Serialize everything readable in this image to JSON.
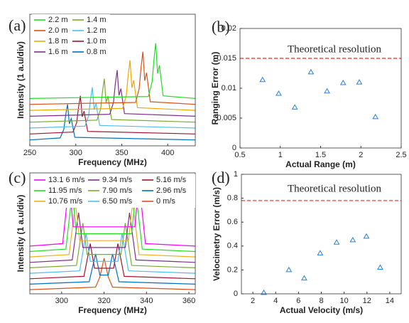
{
  "chart_data": [
    {
      "type": "line",
      "title": "(a)",
      "xlabel": "Frequency (MHz)",
      "ylabel": "Intensity (1 a.u/div)",
      "xlim": [
        250,
        430
      ],
      "xticks": [
        250,
        300,
        350,
        400
      ],
      "ylim": [
        0,
        10
      ],
      "series": [
        {
          "name": "2.2 m",
          "color": "#1fe01f",
          "x": [
            250,
            379,
            383,
            385,
            387,
            389,
            391,
            395,
            430
          ],
          "values": [
            3.6,
            3.75,
            4.86,
            6.54,
            7.8,
            5.49,
            6.12,
            3.8,
            3.6
          ]
        },
        {
          "name": "2.0 m",
          "color": "#d95319",
          "x": [
            250,
            365,
            369,
            371,
            373,
            375,
            377,
            381,
            430
          ],
          "values": [
            3.15,
            3.3,
            4.35,
            5.95,
            7.15,
            4.95,
            5.55,
            3.35,
            3.15
          ]
        },
        {
          "name": "1.8 m",
          "color": "#f0a800",
          "x": [
            250,
            351,
            355,
            357,
            359,
            361,
            363,
            367,
            430
          ],
          "values": [
            2.7,
            2.85,
            3.84,
            5.36,
            6.5,
            4.41,
            4.98,
            2.9,
            2.7
          ]
        },
        {
          "name": "1.6 m",
          "color": "#7e2f8e",
          "x": [
            250,
            337,
            341,
            343,
            345,
            347,
            349,
            353,
            430
          ],
          "values": [
            2.25,
            2.4,
            3.3,
            4.7,
            5.75,
            3.83,
            4.35,
            2.45,
            2.25
          ]
        },
        {
          "name": "1.4 m",
          "color": "#77ac30",
          "x": [
            250,
            323,
            327,
            329,
            331,
            333,
            335,
            339,
            430
          ],
          "values": [
            1.8,
            1.95,
            2.79,
            4.11,
            5.1,
            3.29,
            3.78,
            2.0,
            1.8
          ]
        },
        {
          "name": "1.2 m",
          "color": "#4dbeee",
          "x": [
            250,
            310,
            314,
            316,
            318,
            320,
            322,
            326,
            430
          ],
          "values": [
            1.35,
            1.5,
            2.28,
            3.52,
            4.45,
            2.75,
            3.21,
            1.55,
            1.35
          ]
        },
        {
          "name": "1.0 m",
          "color": "#a2142f",
          "x": [
            250,
            297,
            301,
            303,
            305,
            307,
            309,
            313,
            430
          ],
          "values": [
            0.9,
            1.05,
            1.77,
            2.93,
            3.8,
            2.21,
            2.64,
            1.1,
            0.9
          ]
        },
        {
          "name": "0.8 m",
          "color": "#0072bd",
          "x": [
            250,
            283,
            287,
            289,
            291,
            293,
            295,
            299,
            430
          ],
          "values": [
            0.45,
            0.6,
            1.26,
            2.34,
            3.15,
            1.67,
            2.07,
            0.65,
            0.45
          ]
        }
      ]
    },
    {
      "type": "scatter",
      "title": "(b)",
      "xlabel": "Actual Range (m)",
      "ylabel": "Ranging Error (m)",
      "xlim": [
        0.5,
        2.5
      ],
      "xticks": [
        0.5,
        1,
        1.5,
        2,
        2.5
      ],
      "ylim": [
        0,
        0.02
      ],
      "yticks": [
        0,
        0.005,
        0.01,
        0.015,
        0.02
      ],
      "hline": 0.015,
      "hline_color": "#e8262a",
      "annotation": "Theoretical resolution",
      "series": [
        {
          "color": "#2b7fd0",
          "x": [
            0.78,
            0.98,
            1.18,
            1.38,
            1.58,
            1.78,
            1.98,
            2.18
          ],
          "values": [
            0.0114,
            0.0091,
            0.0068,
            0.0127,
            0.0095,
            0.0109,
            0.011,
            0.0052
          ]
        }
      ]
    },
    {
      "type": "line",
      "title": "(c)",
      "xlabel": "Frequency (MHz)",
      "ylabel": "Intensity (1 a.u/div)",
      "xlim": [
        285,
        363
      ],
      "xticks": [
        300,
        320,
        340,
        360
      ],
      "ylim": [
        0,
        10
      ],
      "series": [
        {
          "name": "13.1 6 m/s",
          "color": "#ff00ff",
          "x": [
            285,
            300.5,
            303.5,
            305.5,
            334.5,
            336.5,
            339.5,
            363
          ],
          "values": [
            3.95,
            4.15,
            9.25,
            5.54,
            5.54,
            9.25,
            4.15,
            3.95
          ]
        },
        {
          "name": "11.95 m/s",
          "color": "#1fe01f",
          "x": [
            285,
            302,
            305,
            307,
            333,
            335,
            338,
            363
          ],
          "values": [
            3.5,
            3.7,
            8.4,
            4.97,
            4.97,
            8.4,
            3.7,
            3.5
          ]
        },
        {
          "name": "10.76 m/s",
          "color": "#edb120",
          "x": [
            285,
            303.5,
            306.5,
            308.5,
            331.5,
            333.5,
            336.5,
            363
          ],
          "values": [
            3.05,
            3.25,
            7.55,
            4.4,
            4.4,
            7.55,
            3.25,
            3.05
          ]
        },
        {
          "name": "9.34 m/s",
          "color": "#7e2f8e",
          "x": [
            285,
            305,
            308,
            310,
            330,
            332,
            335,
            363
          ],
          "values": [
            2.6,
            2.8,
            6.7,
            3.83,
            3.83,
            6.7,
            2.8,
            2.6
          ]
        },
        {
          "name": "7.90 m/s",
          "color": "#77ac30",
          "x": [
            285,
            307,
            310,
            312,
            328,
            330,
            333,
            363
          ],
          "values": [
            2.15,
            2.35,
            5.85,
            3.26,
            3.26,
            5.85,
            2.35,
            2.15
          ]
        },
        {
          "name": "6.50 m/s",
          "color": "#4dbeee",
          "x": [
            285,
            308.5,
            311.5,
            313.5,
            326.5,
            328.5,
            331.5,
            363
          ],
          "values": [
            1.7,
            1.9,
            5.0,
            2.69,
            2.69,
            5.0,
            1.9,
            1.7
          ]
        },
        {
          "name": "5.16 m/s",
          "color": "#a2142f",
          "x": [
            285,
            310.5,
            313.5,
            315.5,
            324.5,
            326.5,
            329.5,
            363
          ],
          "values": [
            1.25,
            1.45,
            4.15,
            2.12,
            2.12,
            4.15,
            1.45,
            1.25
          ]
        },
        {
          "name": "2.96 m/s",
          "color": "#0072bd",
          "x": [
            285,
            313,
            316,
            318,
            322,
            324,
            327,
            363
          ],
          "values": [
            0.8,
            1.0,
            3.3,
            1.55,
            1.55,
            3.3,
            1.0,
            0.8
          ]
        },
        {
          "name": "0 m/s",
          "color": "#d95319",
          "x": [
            285,
            316,
            318,
            320,
            322,
            324,
            363
          ],
          "values": [
            0.35,
            0.55,
            1.39,
            2.95,
            1.39,
            0.55,
            0.35
          ]
        }
      ]
    },
    {
      "type": "scatter",
      "title": "(d)",
      "xlabel": "Actual Velocity (m/s)",
      "ylabel": "Velocimetry Error (m/s)",
      "xlim": [
        1,
        15
      ],
      "xticks": [
        2,
        4,
        6,
        8,
        10,
        12,
        14
      ],
      "ylim": [
        0,
        1
      ],
      "yticks": [
        0,
        0.2,
        0.4,
        0.6,
        0.8,
        1
      ],
      "hline": 0.78,
      "hline_color": "#e8262a",
      "annotation": "Theoretical resolution",
      "series": [
        {
          "color": "#2b7fd0",
          "x": [
            2.96,
            5.16,
            6.5,
            7.9,
            9.34,
            10.76,
            11.95,
            13.16
          ],
          "values": [
            0.01,
            0.2,
            0.13,
            0.34,
            0.43,
            0.45,
            0.48,
            0.22
          ]
        }
      ]
    }
  ]
}
